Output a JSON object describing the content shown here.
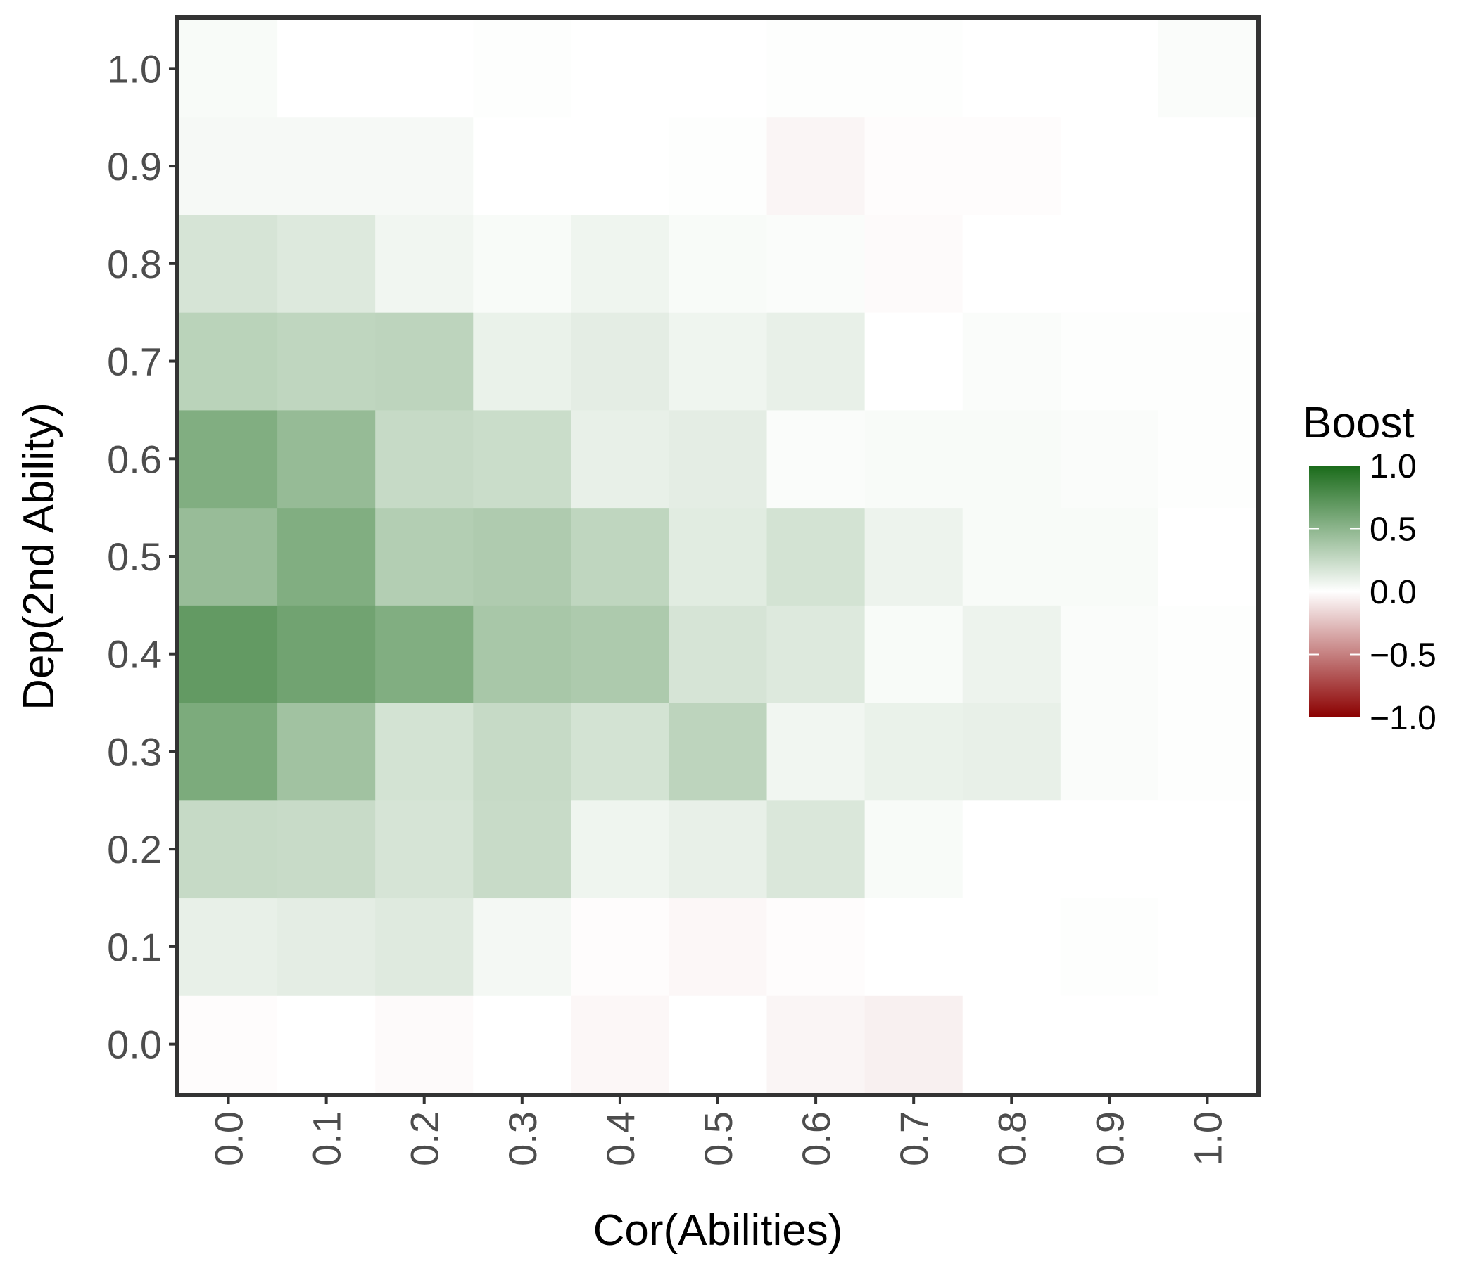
{
  "chart_data": {
    "type": "heatmap",
    "xlabel": "Cor(Abilities)",
    "ylabel": "Dep(2nd Ability)",
    "x": [
      0.0,
      0.1,
      0.2,
      0.3,
      0.4,
      0.5,
      0.6,
      0.7,
      0.8,
      0.9,
      1.0
    ],
    "y": [
      0.0,
      0.1,
      0.2,
      0.3,
      0.4,
      0.5,
      0.6,
      0.7,
      0.8,
      0.9,
      1.0
    ],
    "x_tick_labels": [
      "0.0",
      "0.1",
      "0.2",
      "0.3",
      "0.4",
      "0.5",
      "0.6",
      "0.7",
      "0.8",
      "0.9",
      "1.0"
    ],
    "y_tick_labels": [
      "0.0",
      "0.1",
      "0.2",
      "0.3",
      "0.4",
      "0.5",
      "0.6",
      "0.7",
      "0.8",
      "0.9",
      "1.0"
    ],
    "values_note_rows_ordered_by_y": "each row corresponds to a y value, each column to an x value",
    "values": [
      [
        -0.01,
        0.0,
        -0.02,
        0.0,
        -0.03,
        0.0,
        -0.04,
        -0.06,
        0.0,
        0.0,
        0.0
      ],
      [
        0.1,
        0.12,
        0.14,
        0.05,
        -0.01,
        -0.03,
        -0.01,
        0.0,
        0.0,
        0.01,
        0.0
      ],
      [
        0.25,
        0.24,
        0.18,
        0.24,
        0.07,
        0.1,
        0.16,
        0.03,
        0.0,
        0.0,
        0.0
      ],
      [
        0.57,
        0.41,
        0.19,
        0.25,
        0.19,
        0.29,
        0.06,
        0.09,
        0.1,
        0.02,
        0.01
      ],
      [
        0.68,
        0.62,
        0.55,
        0.38,
        0.36,
        0.18,
        0.15,
        0.03,
        0.08,
        0.02,
        0.01
      ],
      [
        0.45,
        0.55,
        0.33,
        0.35,
        0.28,
        0.13,
        0.19,
        0.08,
        0.03,
        0.03,
        0.0
      ],
      [
        0.55,
        0.46,
        0.25,
        0.23,
        0.1,
        0.12,
        0.02,
        0.03,
        0.03,
        0.02,
        0.01
      ],
      [
        0.3,
        0.28,
        0.29,
        0.09,
        0.12,
        0.07,
        0.1,
        0.0,
        0.02,
        0.01,
        0.01
      ],
      [
        0.18,
        0.15,
        0.06,
        0.03,
        0.07,
        0.03,
        0.02,
        -0.02,
        0.0,
        0.0,
        0.0
      ],
      [
        0.04,
        0.04,
        0.04,
        0.0,
        0.0,
        0.01,
        -0.04,
        -0.01,
        -0.01,
        0.0,
        0.0
      ],
      [
        0.03,
        0.0,
        0.0,
        0.01,
        0.0,
        0.0,
        0.01,
        0.01,
        0.0,
        0.0,
        0.02
      ]
    ],
    "xlim": [
      -0.05,
      1.05
    ],
    "ylim": [
      -0.05,
      1.05
    ],
    "grid": false,
    "legend": {
      "title": "Boost",
      "position": "right",
      "range": [
        -1.0,
        1.0
      ],
      "ticks": [
        "1.0",
        "0.5",
        "0.0",
        "−0.5",
        "−1.0"
      ],
      "tick_values": [
        1.0,
        0.5,
        0.0,
        -0.5,
        -1.0
      ]
    },
    "colors": {
      "high": "#1a6b1a",
      "mid": "#ffffff",
      "low": "#8b0000",
      "panel_border": "#333333"
    }
  }
}
